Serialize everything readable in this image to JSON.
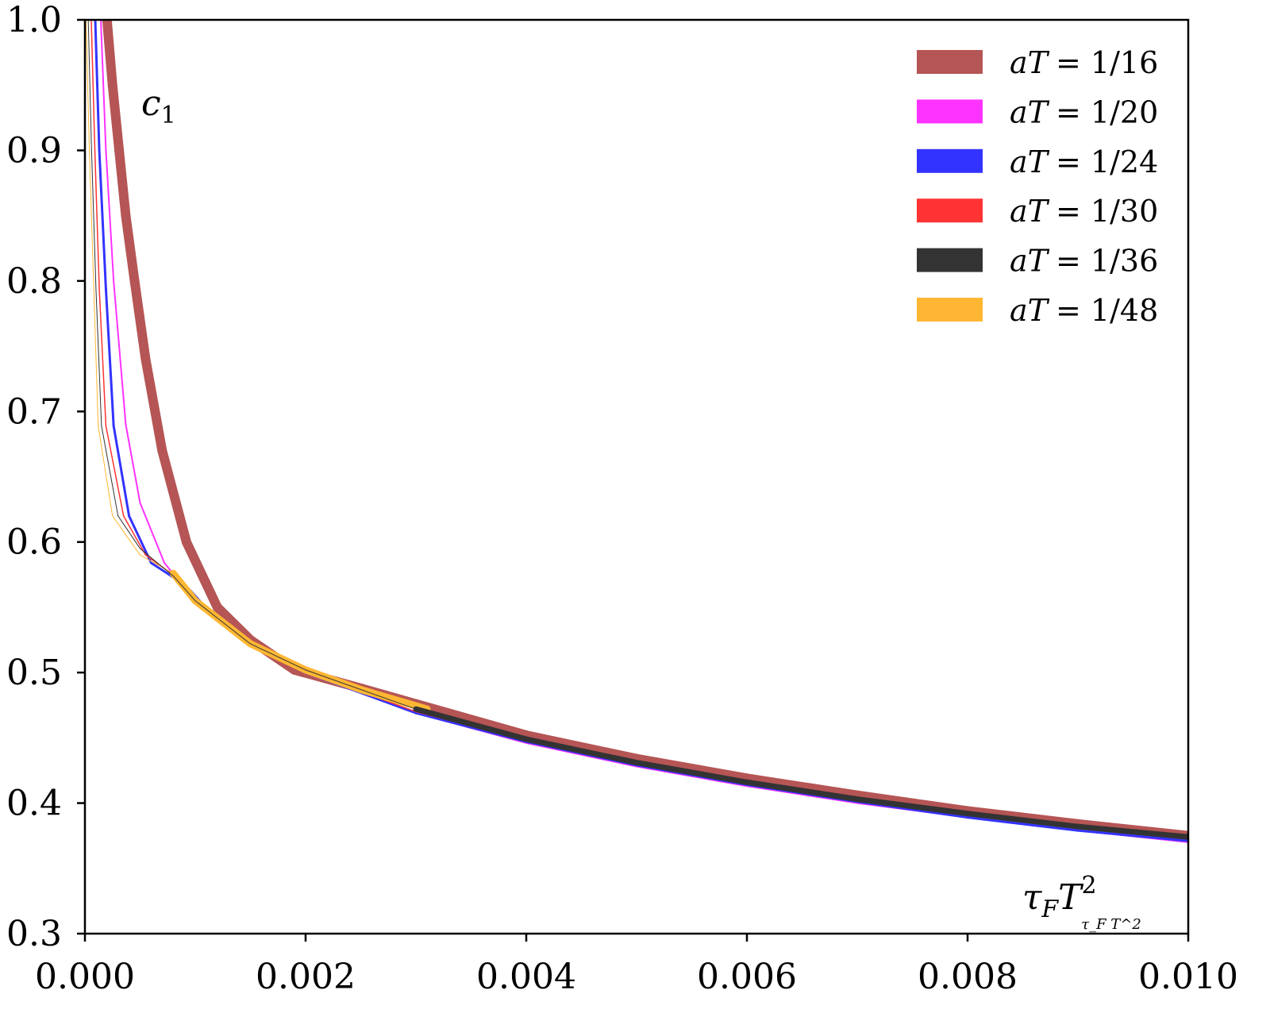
{
  "chart_data": {
    "type": "line",
    "title": "",
    "xlabel": "τ_F T^2",
    "xlabel_main": "τ",
    "xlabel_sub": "F",
    "xlabel_base": "T",
    "xlabel_sup": "2",
    "ylabel": "c_1",
    "ylabel_main": "c",
    "ylabel_sub": "1",
    "xlim": [
      0.0,
      0.01
    ],
    "ylim": [
      0.3,
      1.0
    ],
    "xticks": [
      "0.000",
      "0.002",
      "0.004",
      "0.006",
      "0.008",
      "0.010"
    ],
    "xtick_values": [
      0,
      0.002,
      0.004,
      0.006,
      0.008,
      0.01
    ],
    "yticks": [
      "0.3",
      "0.4",
      "0.5",
      "0.6",
      "0.7",
      "0.8",
      "0.9",
      "1.0"
    ],
    "ytick_values": [
      0.3,
      0.4,
      0.5,
      0.6,
      0.7,
      0.8,
      0.9,
      1.0
    ],
    "grid": false,
    "legend_position": "top-right",
    "series": [
      {
        "name": "aT = 1/16",
        "label_lhs": "aT",
        "label_rhs": "= 1/16",
        "color": "#b55555",
        "x": [
          0.0002,
          0.00025,
          0.00031,
          0.00037,
          0.00045,
          0.00055,
          0.0007,
          0.00092,
          0.0012,
          0.0015,
          0.0019,
          0.0025,
          0.003,
          0.004,
          0.005,
          0.006,
          0.007,
          0.008,
          0.009,
          0.01
        ],
        "y": [
          1.0,
          0.95,
          0.9,
          0.85,
          0.8,
          0.74,
          0.67,
          0.6,
          0.55,
          0.525,
          0.502,
          0.488,
          0.476,
          0.452,
          0.434,
          0.419,
          0.406,
          0.394,
          0.384,
          0.375
        ]
      },
      {
        "name": "aT = 1/20",
        "label_lhs": "aT",
        "label_rhs": "= 1/20",
        "color": "#ff33ff",
        "x": [
          0.000144,
          0.00019,
          0.00026,
          0.00037,
          0.0005,
          0.00072,
          0.00095,
          0.0012,
          0.0015,
          0.002,
          0.003,
          0.004,
          0.005,
          0.006,
          0.007,
          0.008,
          0.009,
          0.01
        ],
        "y": [
          1.0,
          0.9,
          0.8,
          0.69,
          0.63,
          0.584,
          0.56,
          0.542,
          0.522,
          0.5,
          0.469,
          0.446,
          0.428,
          0.413,
          0.4,
          0.389,
          0.379,
          0.37
        ]
      },
      {
        "name": "aT = 1/24",
        "label_lhs": "aT",
        "label_rhs": "= 1/24",
        "color": "#3333ff",
        "x": [
          9.35e-05,
          0.00013,
          0.00019,
          0.00026,
          0.0004,
          0.0006,
          0.00091,
          0.0012,
          0.0015,
          0.002,
          0.003,
          0.004,
          0.005,
          0.006,
          0.007,
          0.008,
          0.009,
          0.01
        ],
        "y": [
          1.0,
          0.9,
          0.794,
          0.689,
          0.62,
          0.584,
          0.567,
          0.54,
          0.521,
          0.5,
          0.469,
          0.447,
          0.429,
          0.414,
          0.401,
          0.389,
          0.379,
          0.371
        ]
      },
      {
        "name": "aT = 1/30",
        "label_lhs": "aT",
        "label_rhs": "= 1/30",
        "color": "#ff3333",
        "x": [
          5.75e-05,
          9e-05,
          0.00013,
          0.00019,
          0.00035,
          0.00055,
          0.0008,
          0.001,
          0.0015,
          0.002,
          0.003,
          0.004,
          0.005,
          0.006,
          0.007,
          0.008,
          0.009,
          0.01
        ],
        "y": [
          1.0,
          0.9,
          0.794,
          0.689,
          0.62,
          0.59,
          0.575,
          0.555,
          0.522,
          0.501,
          0.47,
          0.448,
          0.43,
          0.415,
          0.402,
          0.391,
          0.381,
          0.373
        ]
      },
      {
        "name": "aT = 1/36",
        "label_lhs": "aT",
        "label_rhs": "= 1/36",
        "color": "#333333",
        "x": [
          3e-05,
          6e-05,
          0.0001,
          0.00015,
          0.0003,
          0.0005,
          0.0008,
          0.001,
          0.0015,
          0.002,
          0.003,
          0.004,
          0.005,
          0.006,
          0.007,
          0.008,
          0.009,
          0.01
        ],
        "y": [
          1.0,
          0.9,
          0.794,
          0.689,
          0.62,
          0.595,
          0.574,
          0.555,
          0.522,
          0.502,
          0.472,
          0.449,
          0.431,
          0.416,
          0.403,
          0.392,
          0.382,
          0.374
        ]
      },
      {
        "name": "aT = 1/48",
        "label_lhs": "aT",
        "label_rhs": "= 1/48",
        "color": "#ffb733",
        "x": [
          1e-05,
          4e-05,
          8e-05,
          0.00012,
          0.00025,
          0.0005,
          0.0008,
          0.001,
          0.0015,
          0.002,
          0.0025,
          0.0031
        ],
        "y": [
          1.0,
          0.9,
          0.794,
          0.689,
          0.62,
          0.59,
          0.576,
          0.555,
          0.522,
          0.502,
          0.487,
          0.472
        ]
      }
    ]
  }
}
